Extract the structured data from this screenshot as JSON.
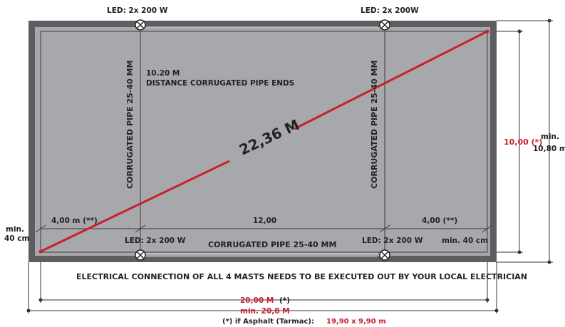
{
  "leds": {
    "top_left": "LED: 2x 200 W",
    "top_right": "LED: 2x 200W",
    "bottom_left": "LED: 2x 200 W",
    "bottom_right": "LED: 2x 200 W"
  },
  "labels": {
    "distance_value": "10.20 M",
    "distance_caption": "DISTANCE CORRUGATED PIPE ENDS",
    "pipe_vertical_left": "CORRUGATED PIPE 25-40 MM",
    "pipe_vertical_right": "CORRUGATED PIPE 25-40 MM",
    "pipe_horizontal": "CORRUGATED PIPE 25-40 MM",
    "diagonal": "22,36 M",
    "left_segment": "4,00 m (**)",
    "middle_segment": "12,00",
    "right_segment": "4,00 (**)",
    "min_left": "min.",
    "min_left_value": "40 cm",
    "min_right_bottom": "min. 40 cm",
    "height_red": "10,00 (*)",
    "height_min": "min.",
    "height_min_value": "10,80 m",
    "electrical_note": "ELECTRICAL CONNECTION OF ALL 4 MASTS NEEDS TO BE EXECUTED OUT BY YOUR LOCAL ELECTRICIAN",
    "width_red": "20,00 M",
    "width_star": "(*)",
    "width_min": "min. 20,8 M",
    "asphalt_prefix": "(*) if Asphalt (Tarmac):",
    "asphalt_value": "19,90 x 9,90 m"
  },
  "colors": {
    "court": "#a7a8ab",
    "border": "#5d5e62",
    "accent_red": "#c8202e",
    "line": "#333333"
  }
}
